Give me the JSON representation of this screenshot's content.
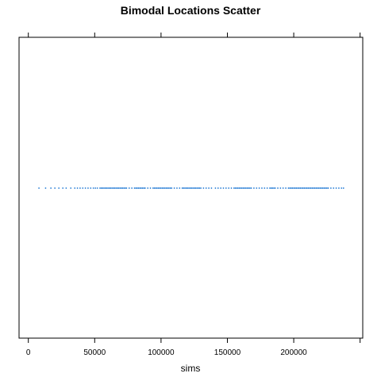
{
  "chart_data": {
    "type": "scatter",
    "title": "Bimodal Locations Scatter",
    "xlabel": "sims",
    "ylabel": "",
    "xlim": [
      -7000,
      252000
    ],
    "x_ticks": [
      0,
      50000,
      100000,
      150000,
      200000,
      250000
    ],
    "x_tick_labels": [
      "0",
      "50000",
      "100000",
      "150000",
      "200000",
      ""
    ],
    "y_value": 1,
    "point_color": "#1f78d4",
    "points_x": [
      8000,
      13000,
      17000,
      20000,
      23000,
      26000,
      28500,
      32000,
      35000,
      37000,
      39000,
      41000,
      43000,
      45000,
      47000,
      49000,
      50500,
      52000,
      54000,
      55000,
      56000,
      57000,
      58000,
      59000,
      60000,
      61000,
      62000,
      63000,
      64000,
      65000,
      66000,
      67000,
      68000,
      69000,
      70000,
      71000,
      72000,
      73000,
      74000,
      76000,
      78000,
      80000,
      81000,
      82000,
      83000,
      84000,
      85000,
      86000,
      87000,
      88000,
      90000,
      92000,
      94000,
      95000,
      96000,
      97000,
      98000,
      99000,
      100000,
      101000,
      102000,
      103000,
      104000,
      105000,
      106000,
      107000,
      108000,
      110000,
      112000,
      114000,
      116000,
      117000,
      118000,
      119000,
      120000,
      121000,
      122000,
      123000,
      124000,
      125000,
      126000,
      127000,
      128000,
      129000,
      130000,
      132000,
      134000,
      136000,
      138000,
      141000,
      143000,
      145000,
      147000,
      149000,
      151000,
      153000,
      155000,
      156000,
      157000,
      158000,
      159000,
      160000,
      161000,
      162000,
      163000,
      164000,
      165000,
      166000,
      167000,
      168000,
      170000,
      172000,
      174000,
      176000,
      178000,
      180000,
      182000,
      183000,
      184000,
      185000,
      186000,
      188000,
      190000,
      192000,
      194000,
      196000,
      197000,
      198000,
      199000,
      200000,
      201000,
      202000,
      203000,
      204000,
      205000,
      206000,
      207000,
      208000,
      209000,
      210000,
      211000,
      212000,
      213000,
      214000,
      215000,
      216000,
      217000,
      218000,
      219000,
      220000,
      221000,
      222000,
      223000,
      224000,
      225000,
      226000,
      228000,
      230000,
      232000,
      234000,
      236000,
      237500
    ]
  }
}
